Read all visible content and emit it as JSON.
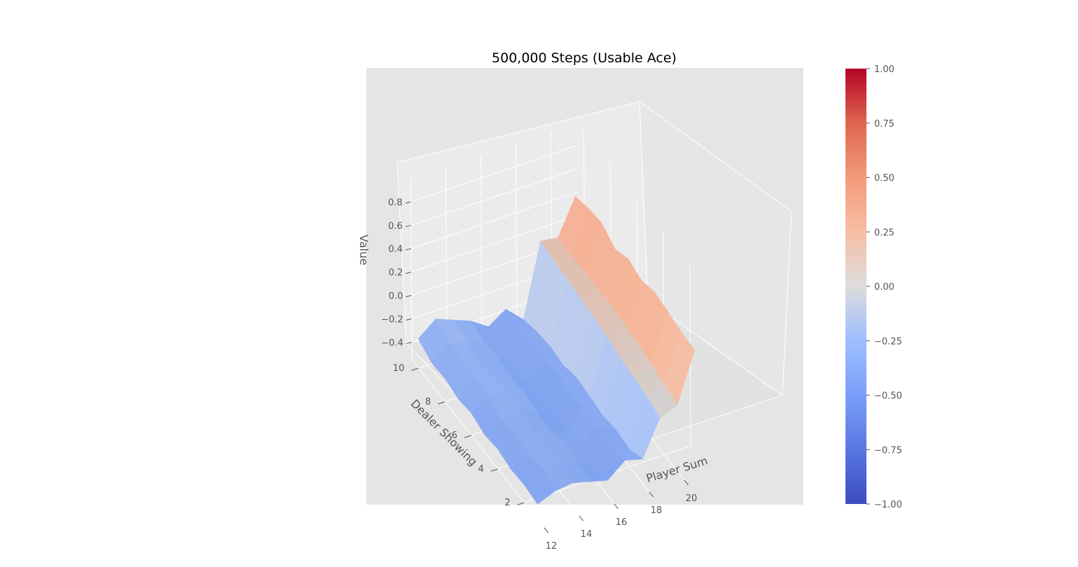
{
  "chart_data": {
    "type": "surface3d",
    "title": "500,000 Steps (Usable Ace)",
    "xlabel": "Player Sum",
    "ylabel": "Dealer Showing",
    "zlabel": "Value",
    "x": [
      12,
      13,
      14,
      15,
      16,
      17,
      18,
      19,
      20,
      21
    ],
    "y": [
      1,
      2,
      3,
      4,
      5,
      6,
      7,
      8,
      9,
      10
    ],
    "xticks": [
      "12",
      "14",
      "16",
      "18",
      "20"
    ],
    "yticks": [
      "2",
      "4",
      "6",
      "8",
      "10"
    ],
    "zticks": [
      "−0.4",
      "−0.2",
      "0.0",
      "0.2",
      "0.4",
      "0.6",
      "0.8"
    ],
    "zlim": [
      -0.55,
      1.0
    ],
    "colorbar": {
      "colormap": "coolwarm",
      "range": [
        -1.0,
        1.0
      ],
      "ticks": [
        "1.00",
        "0.75",
        "0.50",
        "0.25",
        "0.00",
        "−0.25",
        "−0.50",
        "−0.75",
        "−1.00"
      ]
    },
    "z": [
      [
        -0.42,
        -0.4,
        -0.41,
        -0.38,
        -0.4,
        -0.36,
        -0.38,
        -0.35,
        -0.36,
        -0.3
      ],
      [
        -0.36,
        -0.3,
        -0.33,
        -0.3,
        -0.34,
        -0.28,
        -0.26,
        -0.24,
        -0.25,
        -0.18
      ],
      [
        -0.34,
        -0.34,
        -0.3,
        -0.32,
        -0.29,
        -0.28,
        -0.3,
        -0.33,
        -0.28,
        -0.24
      ],
      [
        -0.38,
        -0.36,
        -0.32,
        -0.38,
        -0.36,
        -0.34,
        -0.35,
        -0.32,
        -0.34,
        -0.3
      ],
      [
        -0.42,
        -0.44,
        -0.4,
        -0.44,
        -0.44,
        -0.46,
        -0.45,
        -0.41,
        -0.44,
        -0.4
      ],
      [
        -0.3,
        -0.36,
        -0.3,
        -0.28,
        -0.34,
        -0.3,
        -0.32,
        -0.28,
        -0.3,
        -0.3
      ],
      [
        -0.34,
        -0.4,
        -0.38,
        -0.4,
        -0.38,
        -0.36,
        -0.4,
        -0.38,
        -0.4,
        -0.44
      ],
      [
        -0.04,
        0.0,
        0.02,
        0.04,
        0.08,
        0.1,
        0.12,
        0.14,
        0.16,
        0.18
      ],
      [
        0.02,
        0.05,
        0.08,
        0.12,
        0.14,
        0.16,
        0.15,
        0.16,
        0.15,
        0.16
      ],
      [
        0.44,
        0.45,
        0.48,
        0.5,
        0.46,
        0.5,
        0.44,
        0.52,
        0.5,
        0.46
      ]
    ]
  }
}
